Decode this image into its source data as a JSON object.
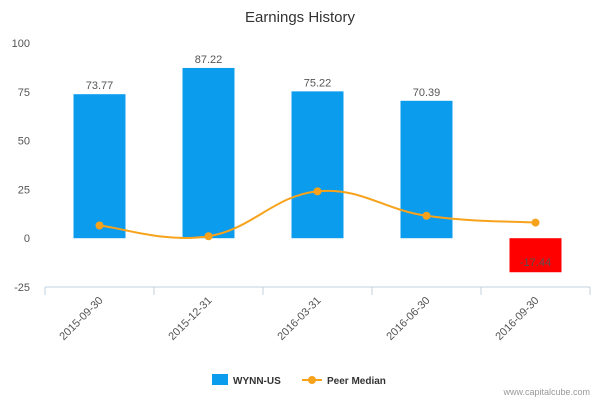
{
  "chart_data": {
    "type": "bar",
    "title": "Earnings History",
    "categories": [
      "2015-09-30",
      "2015-12-31",
      "2016-03-31",
      "2016-06-30",
      "2016-09-30"
    ],
    "series": [
      {
        "name": "WYNN-US",
        "type": "bar",
        "values": [
          73.77,
          87.22,
          75.22,
          70.39,
          -17.44
        ],
        "color": "#0c9cee",
        "negative_color": "#ff0000",
        "labels": [
          "73.77",
          "87.22",
          "75.22",
          "70.39",
          "-17.44"
        ]
      },
      {
        "name": "Peer Median",
        "type": "line",
        "values": [
          6.5,
          1.0,
          24.0,
          11.5,
          8.0
        ],
        "color": "#f7a21b"
      }
    ],
    "ylim": [
      -25,
      100
    ],
    "yticks": [
      "-25",
      "0",
      "25",
      "50",
      "75",
      "100"
    ],
    "ytick_values": [
      -25,
      0,
      25,
      50,
      75,
      100
    ],
    "grid": false,
    "legend": "bottom-center"
  },
  "credit": "www.capitalcube.com"
}
